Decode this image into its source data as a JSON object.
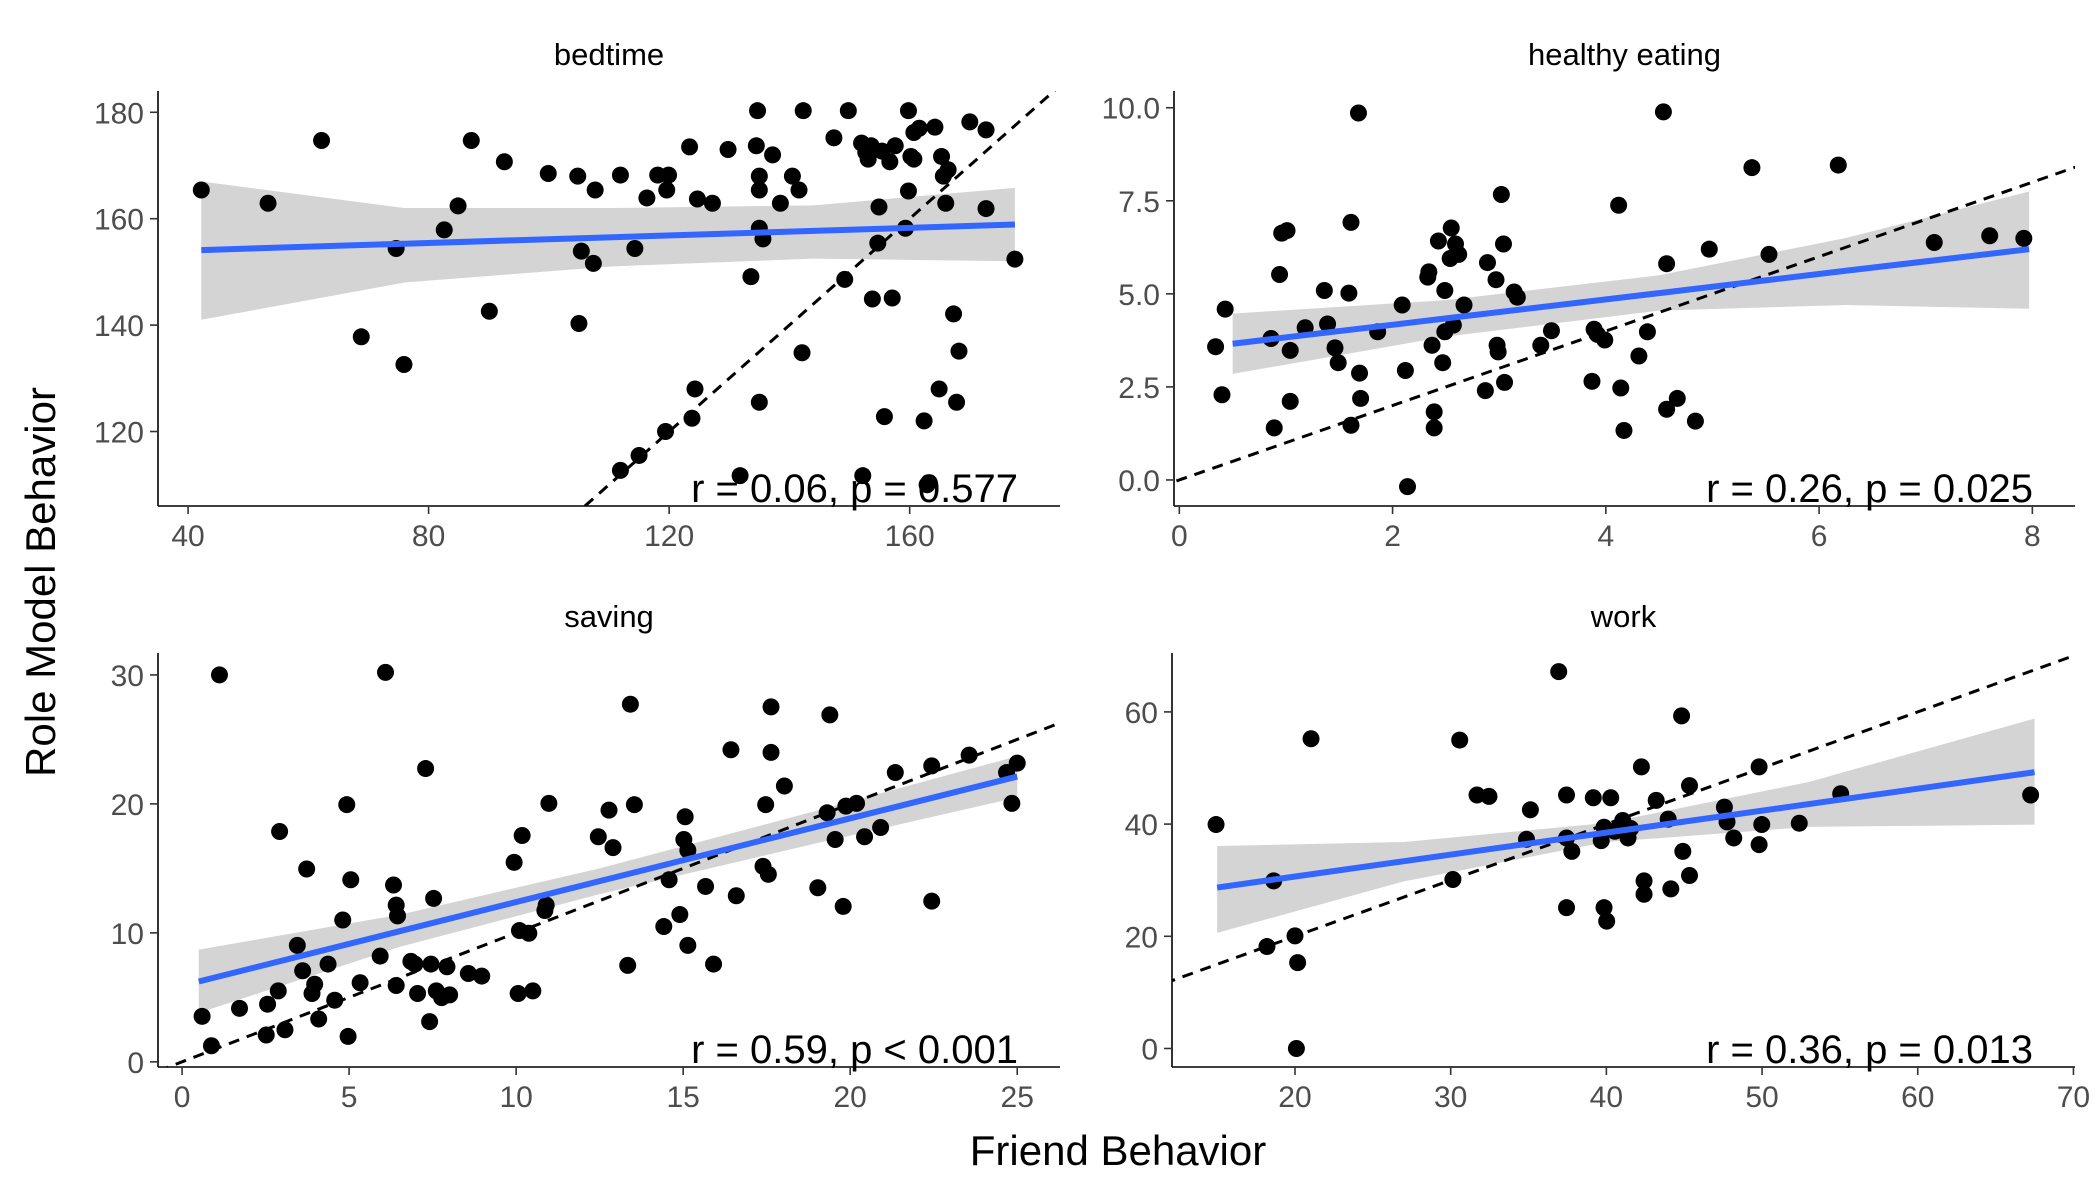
{
  "chart_data": {
    "type": "scatter",
    "xlabel": "Friend Behavior",
    "ylabel": "Role Model Behavior",
    "point_color": "#000000",
    "fit_color": "#3366ff",
    "band_color": "#d4d4d4",
    "facets": [
      {
        "title": "bedtime",
        "annotation": "r = 0.06, p = 0.577",
        "xlim": [
          35,
          185
        ],
        "ylim": [
          106,
          184
        ],
        "xticks": [
          40,
          80,
          120,
          160
        ],
        "yticks": [
          120,
          140,
          160,
          180
        ],
        "x": [
          42.2,
          53.3,
          62.2,
          68.8,
          74.6,
          75.9,
          82.6,
          84.9,
          87.1,
          90.1,
          92.6,
          99.9,
          104.8,
          105,
          105.4,
          107.4,
          107.7,
          111.9,
          111.9,
          114.3,
          115,
          116.3,
          118.1,
          119.4,
          119.6,
          119.9,
          123.4,
          123.8,
          124.3,
          124.7,
          127.2,
          129.8,
          131.8,
          133.6,
          134.5,
          134.7,
          135,
          135,
          135,
          135,
          135.6,
          137.2,
          138.5,
          140.5,
          141.6,
          142.1,
          142.3,
          147.4,
          149.2,
          149.8,
          152,
          152.2,
          152.7,
          153.1,
          153.6,
          153.8,
          154.7,
          154.9,
          155.4,
          155.8,
          156.7,
          157.1,
          157.6,
          159.3,
          159.8,
          159.8,
          160.2,
          160.7,
          160.7,
          161.6,
          162.4,
          162.9,
          164.2,
          164.9,
          165.3,
          165.6,
          166,
          166.4,
          167.3,
          167.8,
          168.2,
          170,
          172.7,
          172.7,
          177.5
        ],
        "y": [
          165.4,
          162.9,
          174.7,
          137.8,
          154.4,
          132.6,
          157.9,
          162.4,
          174.7,
          142.6,
          170.7,
          168.5,
          168,
          140.3,
          153.9,
          151.6,
          165.4,
          168.2,
          112.7,
          154.4,
          115.5,
          163.9,
          168.2,
          120,
          165.4,
          168.2,
          173.5,
          122.5,
          128,
          163.7,
          162.9,
          173,
          111.7,
          149.1,
          173.7,
          180.3,
          158.2,
          168,
          165.4,
          125.5,
          156.2,
          172,
          162.9,
          168,
          165.4,
          134.8,
          180.3,
          175.2,
          148.6,
          180.3,
          174.2,
          111.7,
          172.5,
          171.2,
          173.7,
          144.9,
          155.4,
          162.2,
          172.7,
          122.8,
          170.7,
          145.1,
          173.7,
          158.2,
          180.3,
          165.2,
          171.7,
          176.2,
          171.2,
          177,
          122,
          110,
          177.2,
          128,
          171.7,
          168,
          162.9,
          169.2,
          142.1,
          125.5,
          135.1,
          178.2,
          176.7,
          161.9,
          152.4
        ],
        "fit": {
          "x": [
            42.2,
            76,
            110,
            144,
            177.5
          ],
          "y": [
            154.1,
            155.3,
            156.5,
            157.7,
            158.9
          ],
          "lower": [
            141,
            148,
            151,
            152.5,
            152
          ],
          "upper": [
            167,
            162,
            162,
            162.5,
            165.8
          ]
        }
      },
      {
        "title": "healthy eating",
        "annotation": "r = 0.26, p = 0.025",
        "xlim": [
          -0.05,
          8.4
        ],
        "ylim": [
          -0.7,
          10.45
        ],
        "xticks": [
          0,
          2,
          4,
          6,
          8
        ],
        "yticks": [
          {
            "value": 0,
            "label": "0.0"
          },
          2.5,
          {
            "value": 5,
            "label": "5.0"
          },
          7.5,
          {
            "value": 10,
            "label": "10.0"
          }
        ],
        "x": [
          0.34,
          0.4,
          0.43,
          0.86,
          0.89,
          0.94,
          0.96,
          1.01,
          1.04,
          1.04,
          1.18,
          1.36,
          1.39,
          1.46,
          1.49,
          1.59,
          1.61,
          1.61,
          1.68,
          1.69,
          1.7,
          1.86,
          2.09,
          2.12,
          2.14,
          2.33,
          2.34,
          2.37,
          2.39,
          2.39,
          2.43,
          2.47,
          2.49,
          2.49,
          2.54,
          2.55,
          2.57,
          2.59,
          2.62,
          2.67,
          2.87,
          2.89,
          2.97,
          2.98,
          2.99,
          3.02,
          3.04,
          3.05,
          3.14,
          3.17,
          3.39,
          3.49,
          3.87,
          3.89,
          3.92,
          3.99,
          4.12,
          4.14,
          4.17,
          4.31,
          4.39,
          4.54,
          4.57,
          4.57,
          4.67,
          4.84,
          4.97,
          5.37,
          5.53,
          6.18,
          7.08,
          7.6,
          7.92
        ],
        "y": [
          3.58,
          2.29,
          4.59,
          3.8,
          1.4,
          5.52,
          6.63,
          6.7,
          3.48,
          2.11,
          4.09,
          5.09,
          4.19,
          3.55,
          3.15,
          5.02,
          6.92,
          1.47,
          9.86,
          2.87,
          2.19,
          3.98,
          4.7,
          2.94,
          -0.18,
          5.45,
          5.59,
          3.62,
          1.83,
          1.4,
          6.42,
          3.15,
          3.98,
          5.09,
          5.95,
          6.77,
          4.16,
          6.34,
          6.06,
          4.7,
          2.4,
          5.84,
          5.38,
          3.62,
          3.44,
          7.67,
          6.34,
          2.62,
          5.05,
          4.91,
          3.62,
          4.01,
          2.65,
          4.05,
          3.91,
          3.76,
          7.38,
          2.47,
          1.33,
          3.33,
          3.98,
          9.89,
          1.9,
          5.81,
          2.19,
          1.58,
          6.2,
          8.39,
          6.06,
          8.46,
          6.38,
          6.56,
          6.49
        ],
        "fit": {
          "x": [
            0.5,
            2.5,
            4.5,
            6.25,
            7.97
          ],
          "y": [
            3.66,
            4.34,
            5.02,
            5.62,
            6.2
          ],
          "lower": [
            2.85,
            3.85,
            4.55,
            4.7,
            4.6
          ],
          "upper": [
            4.47,
            4.83,
            5.5,
            6.5,
            7.75
          ]
        }
      },
      {
        "title": "saving",
        "annotation": "r = 0.59, p < 0.001",
        "xlim": [
          -0.72,
          26.28
        ],
        "ylim": [
          -0.4,
          31.7
        ],
        "xticks": [
          0,
          5,
          10,
          15,
          20,
          25
        ],
        "yticks": [
          0,
          10,
          20,
          30
        ],
        "x": [
          0.6,
          0.88,
          1.12,
          1.72,
          2.52,
          2.56,
          2.88,
          2.92,
          3.08,
          3.45,
          3.61,
          3.73,
          3.89,
          3.97,
          4.09,
          4.37,
          4.57,
          4.81,
          4.93,
          4.97,
          5.05,
          5.33,
          5.93,
          6.09,
          6.33,
          6.41,
          6.45,
          6.41,
          6.85,
          6.97,
          7.05,
          7.29,
          7.41,
          7.45,
          7.53,
          7.61,
          7.77,
          7.93,
          8.01,
          8.57,
          8.97,
          9.94,
          10.06,
          10.1,
          10.18,
          10.38,
          10.5,
          10.86,
          10.9,
          10.98,
          12.46,
          12.78,
          12.9,
          13.34,
          13.42,
          13.54,
          14.42,
          14.58,
          14.9,
          15.02,
          15.06,
          15.14,
          15.14,
          15.67,
          15.91,
          16.43,
          16.59,
          17.39,
          17.47,
          17.55,
          17.63,
          17.63,
          18.03,
          19.03,
          19.31,
          19.39,
          19.55,
          19.79,
          19.87,
          20.19,
          20.43,
          20.91,
          21.35,
          22.44,
          22.44,
          23.56,
          24.68,
          24.84,
          25
        ],
        "y": [
          3.53,
          1.25,
          30,
          4.15,
          2.08,
          4.47,
          5.5,
          17.86,
          2.49,
          9.03,
          7.06,
          14.95,
          5.3,
          6.02,
          3.32,
          7.58,
          4.78,
          11,
          19.94,
          1.97,
          14.12,
          6.13,
          8.2,
          30.2,
          13.71,
          12.15,
          11.32,
          5.92,
          7.79,
          7.58,
          5.3,
          22.74,
          3.12,
          7.58,
          12.67,
          5.5,
          4.98,
          7.37,
          5.19,
          6.85,
          6.65,
          15.47,
          5.3,
          10.18,
          17.55,
          9.97,
          5.5,
          11.73,
          12.15,
          20.04,
          17.45,
          19.52,
          16.61,
          7.48,
          27.73,
          19.94,
          10.49,
          14.12,
          11.42,
          17.24,
          19,
          16.41,
          9.03,
          13.6,
          7.58,
          24.2,
          12.88,
          15.16,
          19.94,
          14.54,
          27.52,
          23.99,
          21.39,
          13.5,
          19.31,
          26.9,
          17.24,
          12.05,
          19.83,
          20.04,
          17.45,
          18.17,
          22.43,
          12.46,
          22.95,
          23.78,
          22.43,
          20.04,
          23.16
        ],
        "fit": {
          "x": [
            0.5,
            6.5,
            12.5,
            18.75,
            25
          ],
          "y": [
            6.23,
            10.12,
            14.01,
            18.07,
            22.12
          ],
          "lower": [
            3.8,
            8.9,
            13,
            16.8,
            20.5
          ],
          "upper": [
            8.7,
            11.4,
            15,
            19.3,
            23.7
          ]
        }
      },
      {
        "title": "work",
        "annotation": "r = 0.36, p = 0.013",
        "xlim": [
          12.1,
          70.1
        ],
        "ylim": [
          -3.3,
          70.5
        ],
        "xticks": [
          20,
          30,
          40,
          50,
          60,
          70
        ],
        "yticks": [
          0,
          20,
          40,
          60
        ],
        "x": [
          14.93,
          18.2,
          18.63,
          20,
          20.17,
          20.09,
          21.03,
          30.14,
          30.58,
          31.69,
          32.46,
          34.87,
          35.12,
          36.94,
          37.44,
          37.44,
          37.44,
          37.78,
          39.16,
          39.67,
          39.85,
          39.85,
          40.02,
          40.28,
          40.54,
          41.05,
          41.39,
          41.56,
          42.25,
          42.42,
          42.42,
          43.2,
          43.97,
          44.14,
          44.83,
          44.91,
          45.34,
          45.34,
          47.58,
          47.75,
          48.18,
          49.81,
          49.81,
          49.98,
          52.39,
          55.05,
          67.25
        ],
        "y": [
          39.92,
          18.17,
          29.88,
          20.08,
          15.3,
          0,
          55.22,
          30.12,
          54.98,
          45.18,
          44.94,
          37.29,
          42.55,
          67.18,
          25.1,
          45.18,
          37.53,
          35.14,
          44.7,
          37.05,
          39.44,
          25.1,
          22.71,
          44.7,
          38.73,
          40.64,
          37.53,
          39.21,
          50.2,
          27.49,
          29.88,
          44.23,
          40.88,
          28.45,
          59.29,
          35.14,
          46.86,
          30.84,
          43.03,
          40.4,
          37.53,
          50.2,
          36.34,
          39.92,
          40.16,
          45.42,
          45.18
        ],
        "fit": {
          "x": [
            15,
            27,
            40,
            53,
            67.5
          ],
          "y": [
            28.69,
            33.39,
            38.48,
            43.57,
            49.25
          ],
          "lower": [
            20.6,
            29.8,
            36.8,
            39.5,
            39.9
          ],
          "upper": [
            36.1,
            36.8,
            40.2,
            47.5,
            58.8
          ]
        }
      }
    ]
  }
}
